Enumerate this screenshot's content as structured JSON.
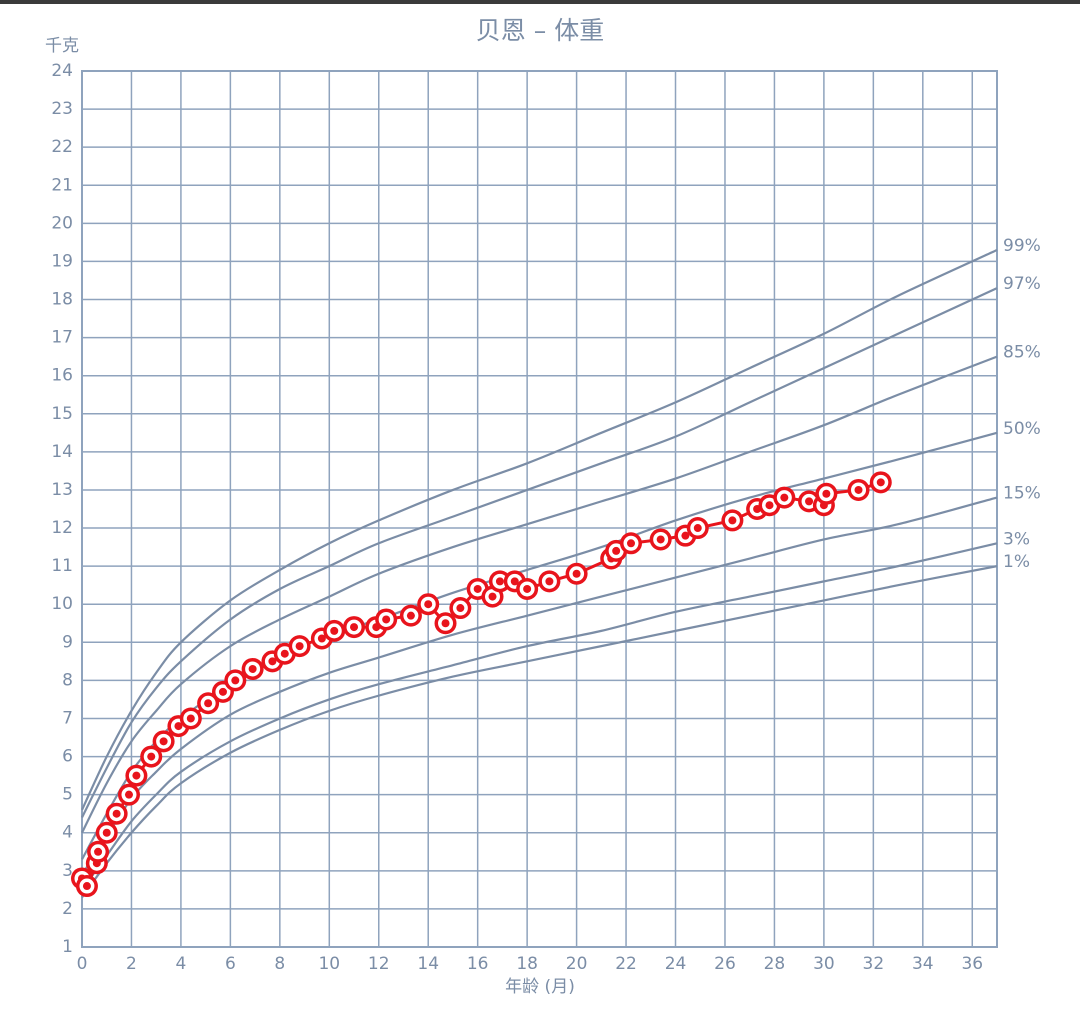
{
  "chart_data": {
    "type": "growth",
    "title": "贝恩 – 体重",
    "ylabel": "千克",
    "xlabel": "年龄 (月)",
    "xlim": [
      0,
      37
    ],
    "ylim": [
      1,
      24
    ],
    "xticks": [
      0,
      2,
      4,
      6,
      8,
      10,
      12,
      14,
      16,
      18,
      20,
      22,
      24,
      26,
      28,
      30,
      32,
      34,
      36
    ],
    "yticks": [
      1,
      2,
      3,
      4,
      5,
      6,
      7,
      8,
      9,
      10,
      11,
      12,
      13,
      14,
      15,
      16,
      17,
      18,
      19,
      20,
      21,
      22,
      23,
      24
    ],
    "grid": true,
    "grid_color": "#8fa3bd",
    "x": [
      0,
      1,
      2,
      3,
      4,
      6,
      8,
      10,
      12,
      15,
      18,
      21,
      24,
      27,
      30,
      33,
      37
    ],
    "series": [
      {
        "name": "99%",
        "color": "#7b8da6",
        "values": [
          4.6,
          6.0,
          7.2,
          8.2,
          9.0,
          10.1,
          10.9,
          11.6,
          12.2,
          13.0,
          13.7,
          14.5,
          15.3,
          16.2,
          17.1,
          18.1,
          19.3
        ]
      },
      {
        "name": "97%",
        "color": "#7b8da6",
        "values": [
          4.4,
          5.7,
          6.9,
          7.8,
          8.5,
          9.6,
          10.4,
          11.0,
          11.6,
          12.3,
          13.0,
          13.7,
          14.4,
          15.3,
          16.2,
          17.1,
          18.3
        ]
      },
      {
        "name": "85%",
        "color": "#7b8da6",
        "values": [
          4.0,
          5.3,
          6.4,
          7.2,
          7.9,
          8.9,
          9.6,
          10.2,
          10.8,
          11.5,
          12.1,
          12.7,
          13.3,
          14.0,
          14.7,
          15.5,
          16.5
        ]
      },
      {
        "name": "50%",
        "color": "#7b8da6",
        "values": [
          3.3,
          4.5,
          5.6,
          6.4,
          7.0,
          7.9,
          8.6,
          9.2,
          9.6,
          10.3,
          10.9,
          11.5,
          12.2,
          12.8,
          13.3,
          13.8,
          14.5
        ]
      },
      {
        "name": "15%",
        "color": "#7b8da6",
        "values": [
          2.9,
          3.9,
          4.9,
          5.6,
          6.2,
          7.1,
          7.7,
          8.2,
          8.6,
          9.2,
          9.7,
          10.2,
          10.7,
          11.2,
          11.7,
          12.1,
          12.8
        ]
      },
      {
        "name": "3%",
        "color": "#7b8da6",
        "values": [
          2.5,
          3.4,
          4.3,
          5.0,
          5.6,
          6.4,
          7.0,
          7.5,
          7.9,
          8.4,
          8.9,
          9.3,
          9.8,
          10.2,
          10.6,
          11.0,
          11.6
        ]
      },
      {
        "name": "1%",
        "color": "#7b8da6",
        "values": [
          2.3,
          3.2,
          4.0,
          4.7,
          5.3,
          6.1,
          6.7,
          7.2,
          7.6,
          8.1,
          8.5,
          8.9,
          9.3,
          9.7,
          10.1,
          10.5,
          11.0
        ]
      }
    ],
    "measurements": {
      "color": "#e8141c",
      "x": [
        0,
        0.2,
        0.6,
        0.65,
        1.0,
        1.4,
        1.9,
        2.2,
        2.8,
        3.3,
        3.9,
        4.4,
        5.1,
        5.7,
        6.2,
        6.9,
        7.7,
        8.2,
        8.8,
        9.7,
        10.2,
        11.0,
        11.9,
        12.3,
        13.3,
        14.0,
        14.7,
        15.3,
        16.0,
        16.6,
        16.9,
        17.5,
        18.0,
        18.9,
        20.0,
        21.4,
        21.6,
        22.2,
        23.4,
        24.4,
        24.9,
        26.3,
        27.3,
        27.8,
        28.4,
        29.4,
        30.0,
        30.1,
        31.4,
        32.3
      ],
      "values": [
        2.8,
        2.6,
        3.2,
        3.5,
        4.0,
        4.5,
        5.0,
        5.5,
        6.0,
        6.4,
        6.8,
        7.0,
        7.4,
        7.7,
        8.0,
        8.3,
        8.5,
        8.7,
        8.9,
        9.1,
        9.3,
        9.4,
        9.4,
        9.6,
        9.7,
        10.0,
        9.5,
        9.9,
        10.4,
        10.2,
        10.6,
        10.6,
        10.4,
        10.6,
        10.8,
        11.2,
        11.4,
        11.6,
        11.7,
        11.8,
        12.0,
        12.2,
        12.5,
        12.6,
        12.8,
        12.7,
        12.6,
        12.9,
        13.0,
        13.2
      ]
    }
  }
}
